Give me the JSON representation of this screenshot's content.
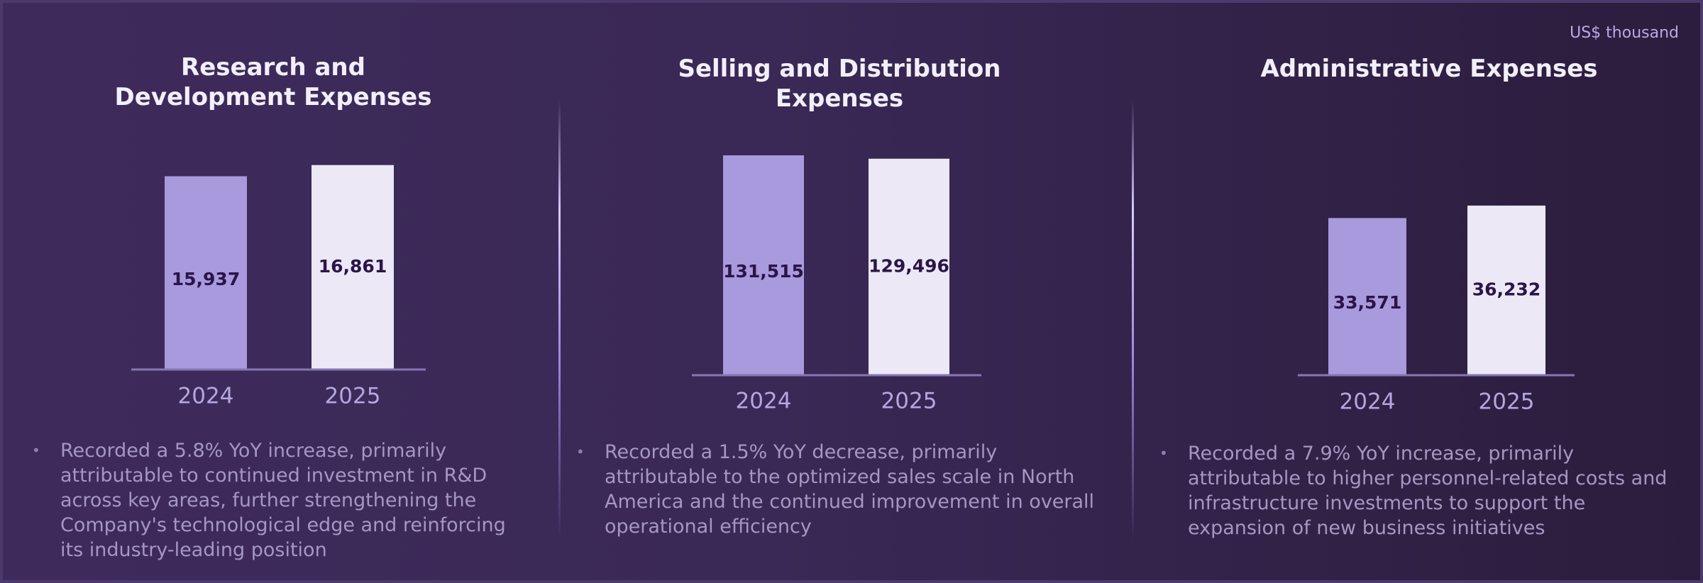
{
  "unit_note": "US$ thousand",
  "chart_data": [
    {
      "type": "bar",
      "title": "Research and Development Expenses",
      "categories": [
        "2024",
        "2025"
      ],
      "values": [
        15937,
        16861
      ],
      "value_labels": [
        "15,937",
        "16,861"
      ],
      "colors": [
        "#a999dd",
        "#ece8f6"
      ],
      "ylim": [
        0,
        19300
      ],
      "note": "Recorded a 5.8% YoY increase, primarily attributable to continued investment in R&D across key areas, further strengthening the Company's technological edge and reinforcing its industry-leading position"
    },
    {
      "type": "bar",
      "title": "Selling and Distribution Expenses",
      "categories": [
        "2024",
        "2025"
      ],
      "values": [
        131515,
        129496
      ],
      "value_labels": [
        "131,515",
        "129,496"
      ],
      "colors": [
        "#a999dd",
        "#ece8f6"
      ],
      "ylim": [
        0,
        140000
      ],
      "note": "Recorded a 1.5% YoY decrease, primarily attributable to the optimized sales scale in North America and the continued improvement in overall operational efficiency"
    },
    {
      "type": "bar",
      "title": "Administrative Expenses",
      "categories": [
        "2024",
        "2025"
      ],
      "values": [
        33571,
        36232
      ],
      "value_labels": [
        "33,571",
        "36,232"
      ],
      "colors": [
        "#a999dd",
        "#ece8f6"
      ],
      "ylim": [
        0,
        50000
      ],
      "note": "Recorded a 7.9% YoY increase, primarily attributable to higher personnel-related costs and infrastructure investments to support the expansion of new business initiatives"
    }
  ]
}
